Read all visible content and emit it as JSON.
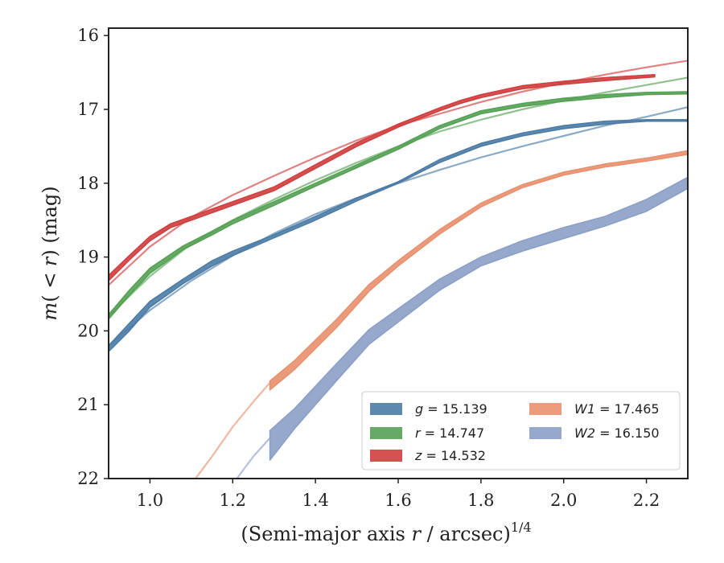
{
  "chart_data": {
    "type": "line",
    "xlabel": "(Semi-major axis r / arcsec)^1/4",
    "ylabel": "m(< r) (mag)",
    "xlim": [
      0.9,
      2.3
    ],
    "ylim": [
      22,
      15.9
    ],
    "y_inverted": true,
    "xticks": [
      "1.0",
      "1.2",
      "1.4",
      "1.6",
      "1.8",
      "2.0",
      "2.2"
    ],
    "yticks": [
      "16",
      "17",
      "18",
      "19",
      "20",
      "21",
      "22"
    ],
    "grid": false,
    "legend_position": "lower-right",
    "legend": [
      {
        "band": "g",
        "value": "15.139"
      },
      {
        "band": "r",
        "value": "14.747"
      },
      {
        "band": "z",
        "value": "14.532"
      },
      {
        "band": "W1",
        "value": "17.465"
      },
      {
        "band": "W2",
        "value": "16.150"
      }
    ],
    "series": [
      {
        "name": "g = 15.139",
        "color": "#4c7ca6",
        "kind": "band",
        "x": [
          0.9,
          0.95,
          1.0,
          1.08,
          1.15,
          1.2,
          1.3,
          1.4,
          1.5,
          1.6,
          1.7,
          1.8,
          1.9,
          2.0,
          2.1,
          2.2,
          2.3
        ],
        "y_upper": [
          20.2,
          19.9,
          19.6,
          19.3,
          19.05,
          18.92,
          18.7,
          18.45,
          18.2,
          17.98,
          17.68,
          17.46,
          17.32,
          17.22,
          17.16,
          17.14,
          17.14
        ],
        "y_lower": [
          20.28,
          20.0,
          19.68,
          19.36,
          19.12,
          18.98,
          18.74,
          18.5,
          18.24,
          18.0,
          17.72,
          17.5,
          17.36,
          17.26,
          17.2,
          17.16,
          17.16
        ],
        "model_x": [
          0.9,
          1.0,
          1.1,
          1.2,
          1.3,
          1.4,
          1.5,
          1.6,
          1.7,
          1.8,
          1.9,
          2.0,
          2.1,
          2.2,
          2.3
        ],
        "model_y": [
          20.2,
          19.72,
          19.32,
          18.98,
          18.68,
          18.42,
          18.2,
          18.0,
          17.82,
          17.65,
          17.5,
          17.36,
          17.22,
          17.1,
          16.97
        ]
      },
      {
        "name": "r = 14.747",
        "color": "#55a155",
        "kind": "band",
        "x": [
          0.9,
          0.95,
          1.0,
          1.08,
          1.15,
          1.2,
          1.3,
          1.4,
          1.5,
          1.6,
          1.7,
          1.8,
          1.9,
          2.0,
          2.1,
          2.2,
          2.3
        ],
        "y_upper": [
          19.78,
          19.45,
          19.15,
          18.85,
          18.65,
          18.5,
          18.25,
          18.0,
          17.75,
          17.5,
          17.22,
          17.02,
          16.92,
          16.85,
          16.8,
          16.77,
          16.76
        ],
        "y_lower": [
          19.84,
          19.52,
          19.22,
          18.9,
          18.7,
          18.55,
          18.3,
          18.04,
          17.79,
          17.54,
          17.26,
          17.06,
          16.96,
          16.89,
          16.84,
          16.8,
          16.79
        ],
        "model_x": [
          0.9,
          1.0,
          1.1,
          1.2,
          1.3,
          1.4,
          1.5,
          1.6,
          1.7,
          1.8,
          1.9,
          2.0,
          2.1,
          2.2,
          2.3
        ],
        "model_y": [
          19.8,
          19.26,
          18.82,
          18.5,
          18.22,
          17.96,
          17.72,
          17.5,
          17.3,
          17.14,
          17.0,
          16.88,
          16.77,
          16.67,
          16.57
        ]
      },
      {
        "name": "z = 14.532",
        "color": "#d03e3e",
        "kind": "band",
        "x": [
          0.9,
          0.95,
          1.0,
          1.05,
          1.1,
          1.2,
          1.3,
          1.4,
          1.5,
          1.6,
          1.7,
          1.75,
          1.8,
          1.9,
          2.0,
          2.1,
          2.22
        ],
        "y_upper": [
          19.25,
          18.98,
          18.72,
          18.55,
          18.45,
          18.25,
          18.05,
          17.75,
          17.45,
          17.2,
          16.98,
          16.88,
          16.8,
          16.68,
          16.62,
          16.57,
          16.53
        ],
        "y_lower": [
          19.32,
          19.04,
          18.78,
          18.6,
          18.5,
          18.3,
          18.1,
          17.8,
          17.5,
          17.24,
          17.02,
          16.92,
          16.84,
          16.72,
          16.66,
          16.61,
          16.56
        ],
        "model_x": [
          0.9,
          1.0,
          1.1,
          1.2,
          1.3,
          1.4,
          1.5,
          1.6,
          1.7,
          1.8,
          1.9,
          2.0,
          2.1,
          2.2,
          2.3
        ],
        "model_y": [
          19.38,
          18.86,
          18.46,
          18.16,
          17.9,
          17.65,
          17.42,
          17.22,
          17.06,
          16.9,
          16.76,
          16.64,
          16.53,
          16.43,
          16.34
        ]
      },
      {
        "name": "W1 = 17.465",
        "color": "#e8906e",
        "kind": "band",
        "x": [
          1.29,
          1.35,
          1.45,
          1.53,
          1.6,
          1.7,
          1.8,
          1.9,
          2.0,
          2.1,
          2.2,
          2.3
        ],
        "y_upper": [
          20.68,
          20.4,
          19.85,
          19.37,
          19.05,
          18.63,
          18.27,
          18.02,
          17.85,
          17.74,
          17.66,
          17.56
        ],
        "y_lower": [
          20.8,
          20.52,
          19.96,
          19.46,
          19.12,
          18.69,
          18.32,
          18.06,
          17.89,
          17.78,
          17.7,
          17.61
        ],
        "model_x": [
          1.11,
          1.15,
          1.2,
          1.25,
          1.29
        ],
        "model_y": [
          22.0,
          21.7,
          21.3,
          20.96,
          20.7
        ]
      },
      {
        "name": "W2 = 16.150",
        "color": "#8b9fc6",
        "kind": "band",
        "x": [
          1.29,
          1.35,
          1.45,
          1.53,
          1.6,
          1.7,
          1.8,
          1.9,
          2.0,
          2.1,
          2.2,
          2.3
        ],
        "y_upper": [
          21.35,
          21.05,
          20.45,
          19.98,
          19.7,
          19.3,
          19.0,
          18.78,
          18.6,
          18.45,
          18.22,
          17.92
        ],
        "y_lower": [
          21.75,
          21.32,
          20.68,
          20.18,
          19.88,
          19.45,
          19.12,
          18.92,
          18.75,
          18.58,
          18.38,
          18.07
        ],
        "model_x": [
          1.21,
          1.25,
          1.29
        ],
        "model_y": [
          22.0,
          21.7,
          21.45
        ]
      }
    ]
  }
}
